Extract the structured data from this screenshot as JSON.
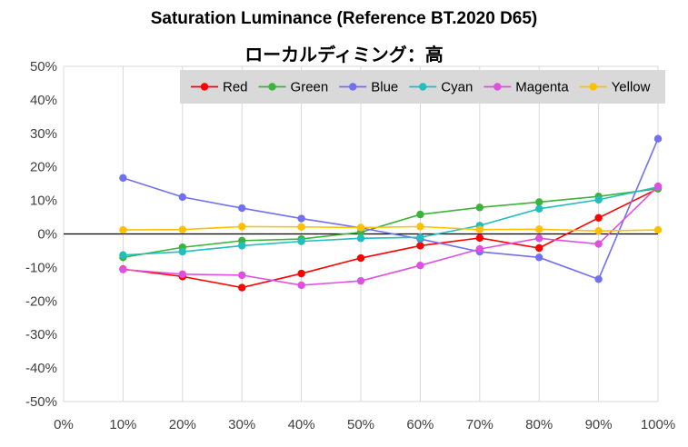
{
  "chart_data": {
    "type": "line",
    "title": "Saturation Luminance (Reference BT.2020 D65)",
    "subtitle": "ローカルディミング：高",
    "x": [
      10,
      20,
      30,
      40,
      50,
      60,
      70,
      80,
      90,
      100
    ],
    "x_tick_labels": [
      "0%",
      "10%",
      "20%",
      "30%",
      "40%",
      "50%",
      "60%",
      "70%",
      "80%",
      "90%",
      "100%"
    ],
    "xlim": [
      0,
      100
    ],
    "y_tick_labels": [
      "-50%",
      "-40%",
      "-30%",
      "-20%",
      "-10%",
      "0%",
      "10%",
      "20%",
      "30%",
      "40%",
      "50%"
    ],
    "ylim": [
      -50,
      50
    ],
    "grid": "vertical",
    "legend_position": "top-right",
    "series": [
      {
        "name": "Red",
        "color": "#ff0000",
        "values": [
          -10.5,
          -12.7,
          -16.0,
          -11.8,
          -7.2,
          -3.5,
          -1.2,
          -4.2,
          4.8,
          13.5
        ]
      },
      {
        "name": "Green",
        "color": "#3cb43c",
        "values": [
          -7.0,
          -4.0,
          -2.0,
          -1.5,
          0.5,
          5.8,
          7.9,
          9.5,
          11.2,
          13.5
        ]
      },
      {
        "name": "Blue",
        "color": "#7070f0",
        "values": [
          16.7,
          11.0,
          7.7,
          4.6,
          1.8,
          -1.5,
          -5.3,
          -7.0,
          -13.5,
          28.4
        ]
      },
      {
        "name": "Cyan",
        "color": "#22bebe",
        "values": [
          -6.3,
          -5.3,
          -3.5,
          -2.2,
          -1.3,
          -1.0,
          2.5,
          7.5,
          10.2,
          14.0
        ]
      },
      {
        "name": "Magenta",
        "color": "#e050e0",
        "values": [
          -10.6,
          -12.0,
          -12.3,
          -15.3,
          -14.0,
          -9.4,
          -4.5,
          -1.3,
          -3.0,
          14.2
        ]
      },
      {
        "name": "Yellow",
        "color": "#ffc000",
        "values": [
          1.2,
          1.3,
          2.2,
          2.1,
          1.9,
          2.2,
          1.3,
          1.4,
          0.9,
          1.2
        ]
      }
    ]
  }
}
